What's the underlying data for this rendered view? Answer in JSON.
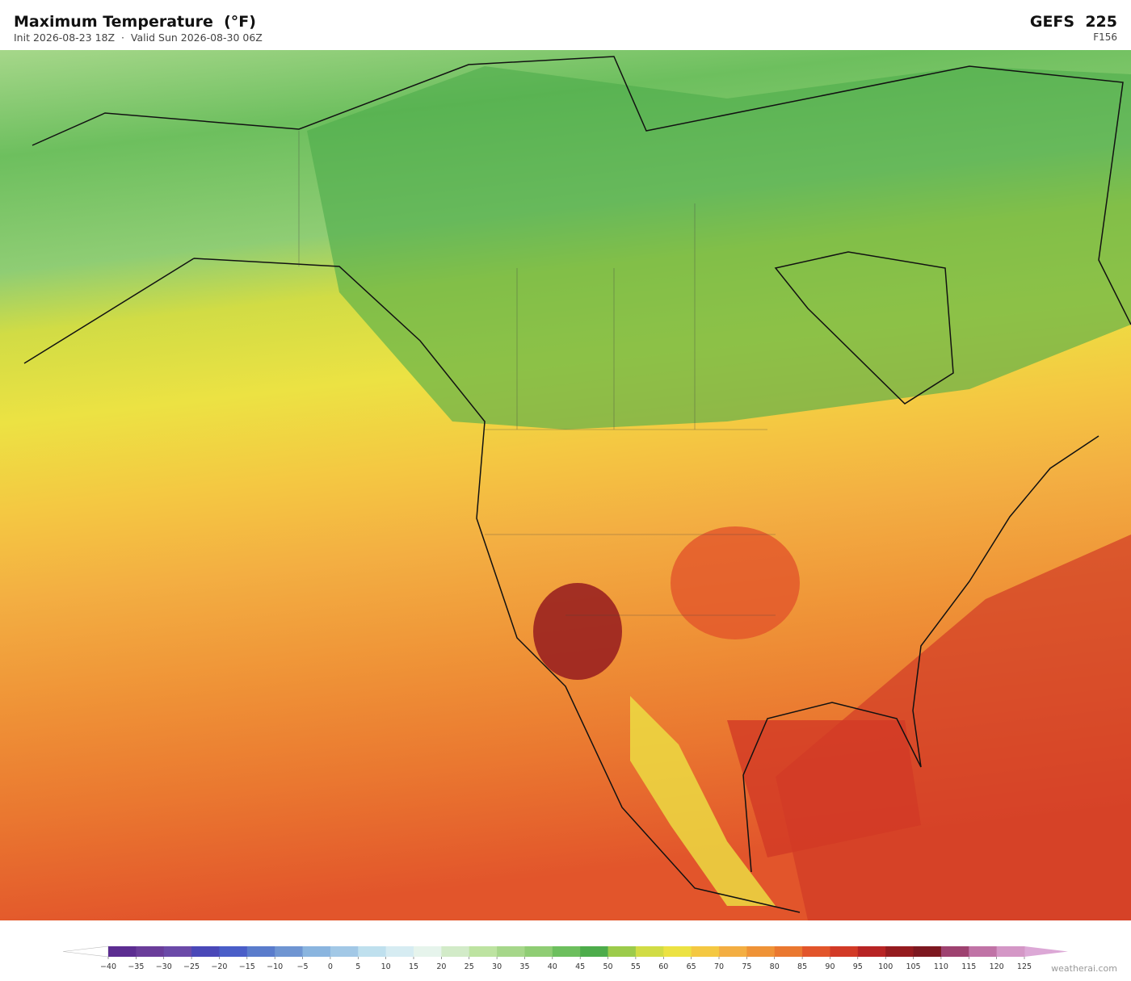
{
  "header": {
    "title": "Maximum Temperature  (°F)",
    "subtitle": "Init 2026-08-23 18Z  ·  Valid Sun 2026-08-30 06Z",
    "model": "GEFS  225",
    "forecast_hour": "F156"
  },
  "colorbar": {
    "ticks": [
      {
        "value": -40,
        "label": "−40"
      },
      {
        "value": -35,
        "label": "−35"
      },
      {
        "value": -30,
        "label": "−30"
      },
      {
        "value": -25,
        "label": "−25"
      },
      {
        "value": -20,
        "label": "−20"
      },
      {
        "value": -15,
        "label": "−15"
      },
      {
        "value": -10,
        "label": "−10"
      },
      {
        "value": -5,
        "label": "−5"
      },
      0,
      5,
      10,
      15,
      20,
      25,
      30,
      35,
      40,
      45,
      50,
      55,
      60,
      65,
      70,
      75,
      80,
      85,
      90,
      95,
      100,
      105,
      110,
      115,
      120,
      125
    ],
    "colors": [
      "#5c2d91",
      "#6a3d9a",
      "#6b4aa8",
      "#4a48b8",
      "#4a5ec8",
      "#5a7ccc",
      "#6f95d2",
      "#8ab5df",
      "#a2c8e6",
      "#bfe0ee",
      "#d6ecf2",
      "#e6f4ec",
      "#d2ebc8",
      "#bde3a1",
      "#a6d78a",
      "#8fcd74",
      "#6dbf5e",
      "#4dac4b",
      "#9ccb4b",
      "#d1dc45",
      "#ece243",
      "#f4c842",
      "#f3ae42",
      "#ef9337",
      "#ea7830",
      "#e2552b",
      "#d23a26",
      "#b72424",
      "#951b1f",
      "#7d1820",
      "#9e4270",
      "#c073a6",
      "#d497c6"
    ],
    "under_color": "#ffffff",
    "over_color": "#dca8d6"
  },
  "credit": "weatherai.com"
}
